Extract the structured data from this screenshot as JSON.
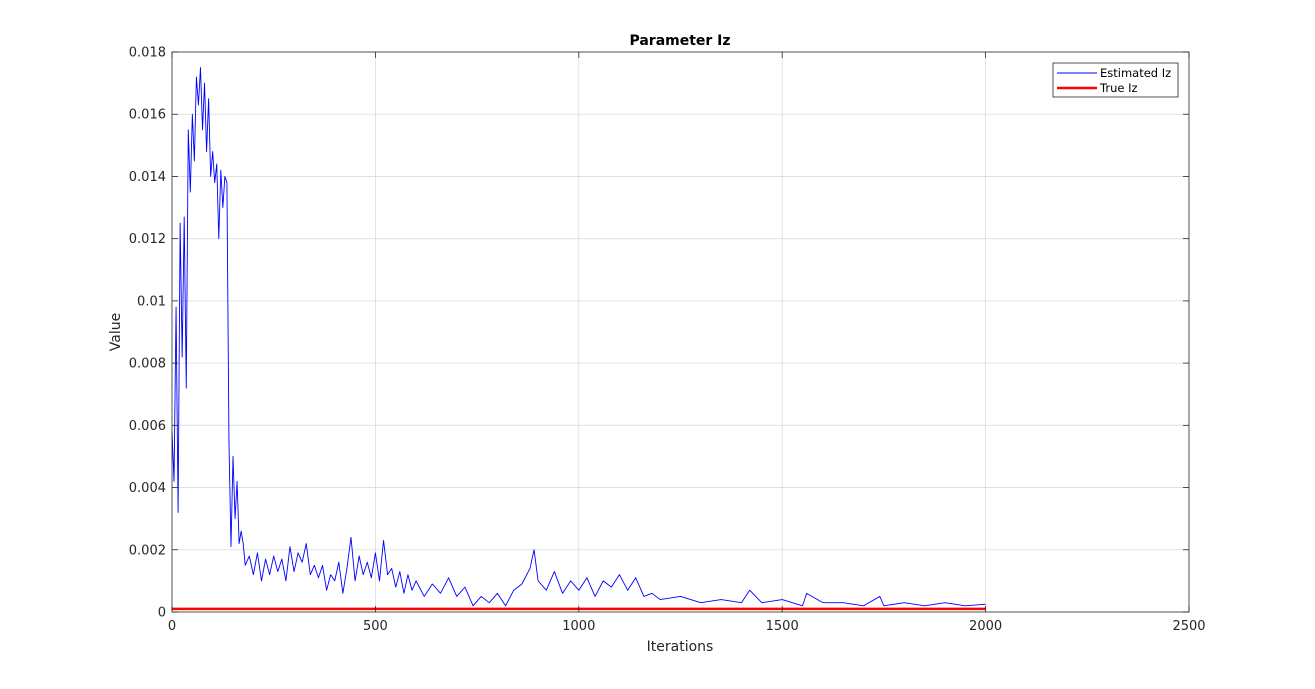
{
  "chart_data": {
    "type": "line",
    "title": "Parameter Iz",
    "xlabel": "Iterations",
    "ylabel": "Value",
    "xlim": [
      0,
      2500
    ],
    "ylim": [
      0,
      0.018
    ],
    "grid": true,
    "legend_location": "top-right",
    "x_ticks": [
      0,
      500,
      1000,
      1500,
      2000,
      2500
    ],
    "x_tick_labels": [
      "0",
      "500",
      "1000",
      "1500",
      "2000",
      "2500"
    ],
    "y_ticks": [
      0,
      0.002,
      0.004,
      0.006,
      0.008,
      0.01,
      0.012,
      0.014,
      0.016,
      0.018
    ],
    "y_tick_labels": [
      "0",
      "0.002",
      "0.004",
      "0.006",
      "0.008",
      "0.01",
      "0.012",
      "0.014",
      "0.016",
      "0.018"
    ],
    "series": [
      {
        "name": "Estimated Iz",
        "color": "#0000ff",
        "x": [
          0,
          5,
          10,
          15,
          20,
          25,
          30,
          35,
          40,
          45,
          50,
          55,
          60,
          65,
          70,
          75,
          80,
          85,
          90,
          95,
          100,
          105,
          110,
          115,
          120,
          125,
          130,
          135,
          140,
          145,
          150,
          155,
          160,
          165,
          170,
          175,
          180,
          190,
          200,
          210,
          220,
          230,
          240,
          250,
          260,
          270,
          280,
          290,
          300,
          310,
          320,
          330,
          340,
          350,
          360,
          370,
          380,
          390,
          400,
          410,
          420,
          430,
          440,
          450,
          460,
          470,
          480,
          490,
          500,
          510,
          520,
          530,
          540,
          550,
          560,
          570,
          580,
          590,
          600,
          620,
          640,
          660,
          680,
          700,
          720,
          740,
          760,
          780,
          800,
          820,
          840,
          860,
          880,
          890,
          900,
          920,
          940,
          960,
          980,
          1000,
          1020,
          1040,
          1060,
          1080,
          1100,
          1120,
          1140,
          1160,
          1180,
          1200,
          1250,
          1300,
          1350,
          1400,
          1420,
          1450,
          1500,
          1550,
          1560,
          1600,
          1650,
          1700,
          1740,
          1750,
          1800,
          1850,
          1900,
          1950,
          2000
        ],
        "values": [
          0.0058,
          0.0042,
          0.0098,
          0.0032,
          0.0125,
          0.0082,
          0.0127,
          0.0072,
          0.0155,
          0.0135,
          0.016,
          0.0145,
          0.0172,
          0.0163,
          0.0175,
          0.0155,
          0.017,
          0.0148,
          0.0165,
          0.014,
          0.0148,
          0.0138,
          0.0144,
          0.012,
          0.0142,
          0.013,
          0.014,
          0.0138,
          0.0055,
          0.0021,
          0.005,
          0.003,
          0.0042,
          0.0022,
          0.0026,
          0.0022,
          0.0015,
          0.0018,
          0.0012,
          0.0019,
          0.001,
          0.0017,
          0.0012,
          0.0018,
          0.0013,
          0.0017,
          0.001,
          0.0021,
          0.0013,
          0.0019,
          0.0016,
          0.0022,
          0.0012,
          0.0015,
          0.0011,
          0.0015,
          0.0007,
          0.0012,
          0.001,
          0.0016,
          0.0006,
          0.0014,
          0.0024,
          0.001,
          0.0018,
          0.0012,
          0.0016,
          0.0011,
          0.0019,
          0.001,
          0.0023,
          0.0012,
          0.0014,
          0.0008,
          0.0013,
          0.0006,
          0.0012,
          0.0007,
          0.001,
          0.0005,
          0.0009,
          0.0006,
          0.0011,
          0.0005,
          0.0008,
          0.0002,
          0.0005,
          0.0003,
          0.0006,
          0.0002,
          0.0007,
          0.0009,
          0.0014,
          0.002,
          0.001,
          0.0007,
          0.0013,
          0.0006,
          0.001,
          0.0007,
          0.0011,
          0.0005,
          0.001,
          0.0008,
          0.0012,
          0.0007,
          0.0011,
          0.0005,
          0.0006,
          0.0004,
          0.0005,
          0.0003,
          0.0004,
          0.0003,
          0.0007,
          0.0003,
          0.0004,
          0.0002,
          0.0006,
          0.0003,
          0.0003,
          0.0002,
          0.0005,
          0.0002,
          0.0003,
          0.0002,
          0.0003,
          0.0002,
          0.00025
        ]
      },
      {
        "name": "True Iz",
        "color": "#ff0000",
        "x": [
          0,
          2000
        ],
        "values": [
          0.0001,
          0.0001
        ]
      }
    ]
  }
}
